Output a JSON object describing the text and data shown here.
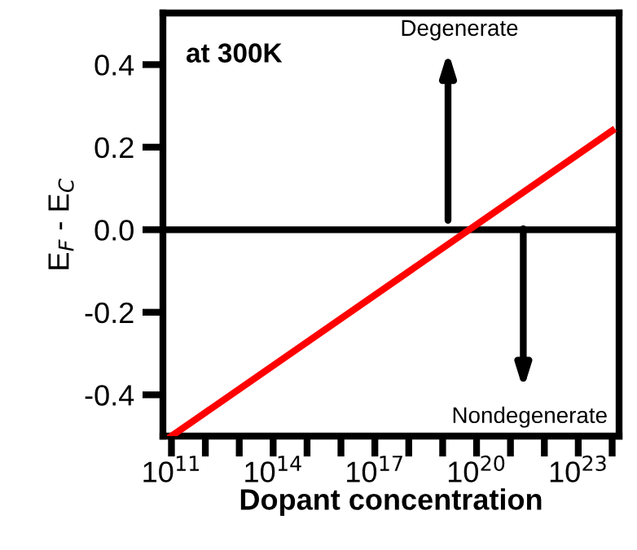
{
  "chart_data": {
    "type": "line",
    "xlabel": "Dopant concentration",
    "ylabel": "E$_{F}$ - E$_{C}$",
    "log": "x",
    "xlim": [
      56000000000.0,
      1.6e+24
    ],
    "ylim": [
      -0.5,
      0.525
    ],
    "xticks": [
      {
        "value": 100000000000.0,
        "label": "10$^{11}$"
      },
      {
        "value": 1000000000000.0,
        "label": null
      },
      {
        "value": 10000000000000.0,
        "label": null
      },
      {
        "value": 100000000000000.0,
        "label": "10$^{14}$"
      },
      {
        "value": 1000000000000000.0,
        "label": null
      },
      {
        "value": 1e+16,
        "label": null
      },
      {
        "value": 1e+17,
        "label": "10$^{17}$"
      },
      {
        "value": 1e+18,
        "label": null
      },
      {
        "value": 1e+19,
        "label": null
      },
      {
        "value": 1e+20,
        "label": "10$^{20}$"
      },
      {
        "value": 1e+21,
        "label": null
      },
      {
        "value": 1e+22,
        "label": null
      },
      {
        "value": 1e+23,
        "label": "10$^{23}$"
      },
      {
        "value": 1e+24,
        "label": null
      }
    ],
    "yticks": [
      {
        "value": -0.4,
        "label": "-0.4"
      },
      {
        "value": -0.2,
        "label": "-0.2"
      },
      {
        "value": 0.0,
        "label": "0.0"
      },
      0.2,
      0.4
    ],
    "series": [
      {
        "color": "#ff0000",
        "x": [
          100000000000.0,
          1e+24
        ],
        "values": [
          -0.5,
          0.24
        ]
      }
    ],
    "ref_lines": [
      {
        "axis": "y",
        "value": 0.0,
        "color": "#000000"
      }
    ],
    "annotations": [
      "at 300K",
      "Degenerate",
      "Nondegenerate"
    ],
    "grid": false,
    "legend": false
  }
}
